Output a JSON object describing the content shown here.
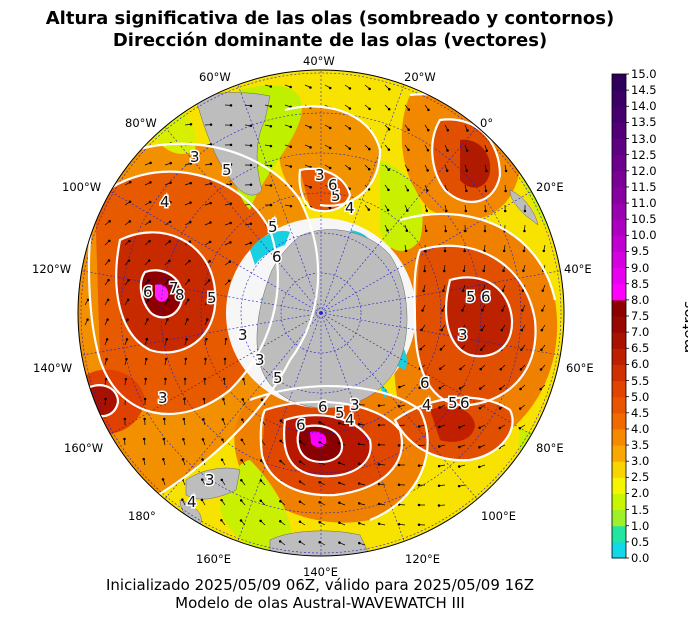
{
  "title": {
    "line1": "Altura significativa de las olas (sombreado y contornos)",
    "line2": "Dirección dominante de las olas (vectores)"
  },
  "footer": {
    "line1": "Inicializado 2025/05/09 06Z, válido para 2025/05/09 16Z",
    "line2": "Modelo de olas Austral-WAVEWATCH III"
  },
  "map": {
    "projection": "south-polar-stereographic",
    "longitude_labels": [
      "40°W",
      "20°W",
      "0°",
      "20°E",
      "40°E",
      "60°E",
      "80°E",
      "100°E",
      "120°E",
      "140°E",
      "160°E",
      "180°",
      "160°W",
      "140°W",
      "120°W",
      "100°W",
      "80°W",
      "60°W"
    ],
    "contour_labels": [
      "3",
      "4",
      "5",
      "6",
      "7",
      "8",
      "3",
      "3",
      "4",
      "5",
      "5",
      "6",
      "3",
      "4",
      "5",
      "6",
      "3",
      "5",
      "6",
      "4",
      "5",
      "6",
      "3",
      "6",
      "4",
      "5",
      "6",
      "3",
      "3",
      "4",
      "5",
      "6",
      "3"
    ],
    "land_color": "#bdbdbd",
    "ocean_grid_color": "#2a2ad8"
  },
  "colorbar": {
    "unit_label": "metros",
    "tick_labels": [
      "15.0",
      "14.5",
      "14.0",
      "13.5",
      "13.0",
      "12.5",
      "12.0",
      "11.5",
      "11.0",
      "10.5",
      "10.0",
      "9.5",
      "9.0",
      "8.5",
      "8.0",
      "7.5",
      "7.0",
      "6.5",
      "6.0",
      "5.5",
      "5.0",
      "4.5",
      "4.0",
      "3.5",
      "3.0",
      "2.5",
      "2.0",
      "1.5",
      "1.0",
      "0.5",
      "0.0"
    ],
    "colors": [
      "#12d8e8",
      "#22e6a0",
      "#9df02a",
      "#c8f500",
      "#f5f500",
      "#f8d400",
      "#f8a800",
      "#f58a00",
      "#f06a00",
      "#e85400",
      "#e04400",
      "#d03000",
      "#bc2000",
      "#a81200",
      "#960800",
      "#8c0000",
      "#ff00ff",
      "#e800f0",
      "#d400e0",
      "#c000d0",
      "#ac00c0",
      "#9800b0",
      "#8800a0",
      "#7a0096",
      "#6c008c",
      "#5e0082",
      "#520078",
      "#46006e",
      "#3a0064",
      "#2e005a"
    ]
  }
}
